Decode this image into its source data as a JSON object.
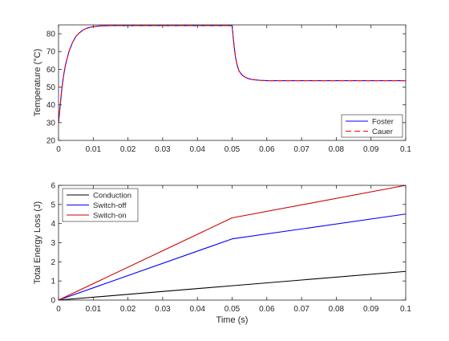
{
  "chart_data": [
    {
      "type": "line",
      "title": "",
      "xlabel": "",
      "ylabel": "Temperature (°C)",
      "xlim": [
        0,
        0.1
      ],
      "ylim": [
        20,
        85
      ],
      "x_ticks": [
        "0",
        "0.01",
        "0.02",
        "0.03",
        "0.04",
        "0.05",
        "0.06",
        "0.07",
        "0.08",
        "0.09",
        "0.1"
      ],
      "y_ticks": [
        "20",
        "30",
        "40",
        "50",
        "60",
        "70",
        "80"
      ],
      "legend_position": "bottom-right",
      "grid": false,
      "series": [
        {
          "name": "Foster",
          "color": "#0000ff",
          "style": "solid",
          "x": [
            0,
            0.0005,
            0.001,
            0.0015,
            0.002,
            0.003,
            0.004,
            0.005,
            0.006,
            0.007,
            0.008,
            0.009,
            0.01,
            0.012,
            0.015,
            0.02,
            0.03,
            0.04,
            0.05,
            0.0503,
            0.0507,
            0.051,
            0.0515,
            0.052,
            0.053,
            0.054,
            0.055,
            0.056,
            0.057,
            0.058,
            0.06,
            0.062,
            0.065,
            0.07,
            0.08,
            0.09,
            0.1
          ],
          "y": [
            30,
            40,
            50,
            57,
            62.5,
            70,
            75,
            78.5,
            80.5,
            82,
            83,
            83.6,
            84,
            84.4,
            84.6,
            84.6,
            84.6,
            84.6,
            84.6,
            78,
            71,
            66.5,
            62,
            59,
            56.5,
            55.3,
            54.6,
            54.2,
            54,
            53.8,
            53.6,
            53.6,
            53.6,
            53.6,
            53.6,
            53.6,
            53.6
          ]
        },
        {
          "name": "Cauer",
          "color": "#ff0000",
          "style": "dashed",
          "x": [
            0,
            0.0005,
            0.001,
            0.0015,
            0.002,
            0.003,
            0.004,
            0.005,
            0.006,
            0.007,
            0.008,
            0.009,
            0.01,
            0.012,
            0.015,
            0.02,
            0.03,
            0.04,
            0.05,
            0.0503,
            0.0507,
            0.051,
            0.0515,
            0.052,
            0.053,
            0.054,
            0.055,
            0.056,
            0.057,
            0.058,
            0.06,
            0.062,
            0.065,
            0.07,
            0.08,
            0.09,
            0.1
          ],
          "y": [
            30,
            40,
            50,
            57,
            62.5,
            70,
            75,
            78.5,
            80.5,
            82,
            83,
            83.6,
            84,
            84.4,
            84.6,
            84.6,
            84.6,
            84.6,
            84.6,
            78,
            71,
            66.5,
            62,
            59,
            56.5,
            55.3,
            54.6,
            54.2,
            54,
            53.8,
            53.6,
            53.6,
            53.6,
            53.6,
            53.6,
            53.6,
            53.6
          ]
        }
      ]
    },
    {
      "type": "line",
      "title": "",
      "xlabel": "Time (s)",
      "ylabel": "Total Energy Loss (J)",
      "xlim": [
        0,
        0.1
      ],
      "ylim": [
        0,
        6
      ],
      "x_ticks": [
        "0",
        "0.01",
        "0.02",
        "0.03",
        "0.04",
        "0.05",
        "0.06",
        "0.07",
        "0.08",
        "0.09",
        "0.1"
      ],
      "y_ticks": [
        "0",
        "1",
        "2",
        "3",
        "4",
        "5",
        "6"
      ],
      "legend_position": "top-left",
      "grid": false,
      "series": [
        {
          "name": "Conduction",
          "color": "#000000",
          "style": "solid",
          "x": [
            0,
            0.05,
            0.1
          ],
          "y": [
            0,
            0.75,
            1.5
          ]
        },
        {
          "name": "Switch-off",
          "color": "#0000ff",
          "style": "solid",
          "x": [
            0,
            0.05,
            0.1
          ],
          "y": [
            0,
            3.2,
            4.5
          ]
        },
        {
          "name": "Switch-on",
          "color": "#cc0000",
          "style": "solid",
          "x": [
            0,
            0.05,
            0.1
          ],
          "y": [
            0,
            4.3,
            6.0
          ]
        }
      ]
    }
  ]
}
